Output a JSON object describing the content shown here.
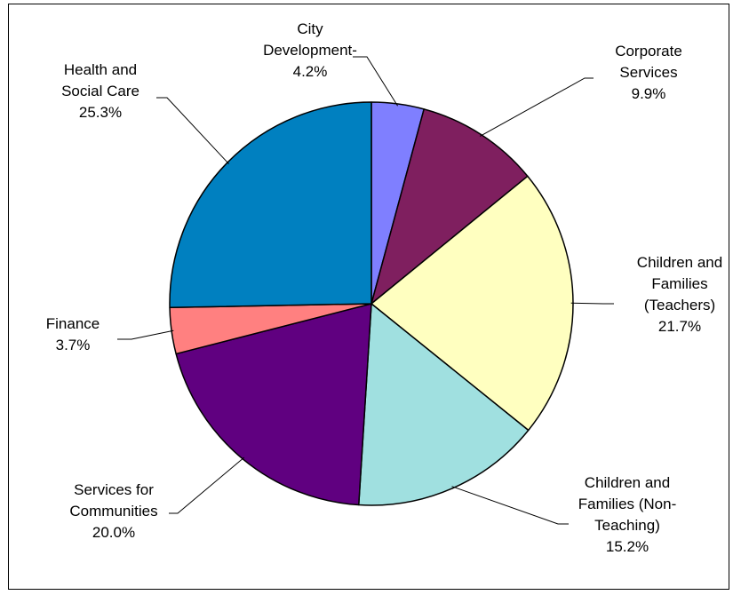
{
  "chart_data": {
    "type": "pie",
    "title": "",
    "start_angle_deg": 0,
    "direction": "clockwise",
    "slices": [
      {
        "label": "City Development",
        "value": 4.2,
        "display": "4.2%",
        "color": "#7f7fff"
      },
      {
        "label": "Corporate Services",
        "value": 9.9,
        "display": "9.9%",
        "color": "#7f1f5f"
      },
      {
        "label": "Children and Families (Teachers)",
        "value": 21.7,
        "display": "21.7%",
        "color": "#ffffc0"
      },
      {
        "label": "Children and Families (Non-Teaching)",
        "value": 15.2,
        "display": "15.2%",
        "color": "#a0e0e0"
      },
      {
        "label": "Services for Communities",
        "value": 20.0,
        "display": "20.0%",
        "color": "#600080"
      },
      {
        "label": "Finance",
        "value": 3.7,
        "display": "3.7%",
        "color": "#ff8080"
      },
      {
        "label": "Health and Social Care",
        "value": 25.3,
        "display": "25.3%",
        "color": "#0080c0"
      }
    ]
  }
}
